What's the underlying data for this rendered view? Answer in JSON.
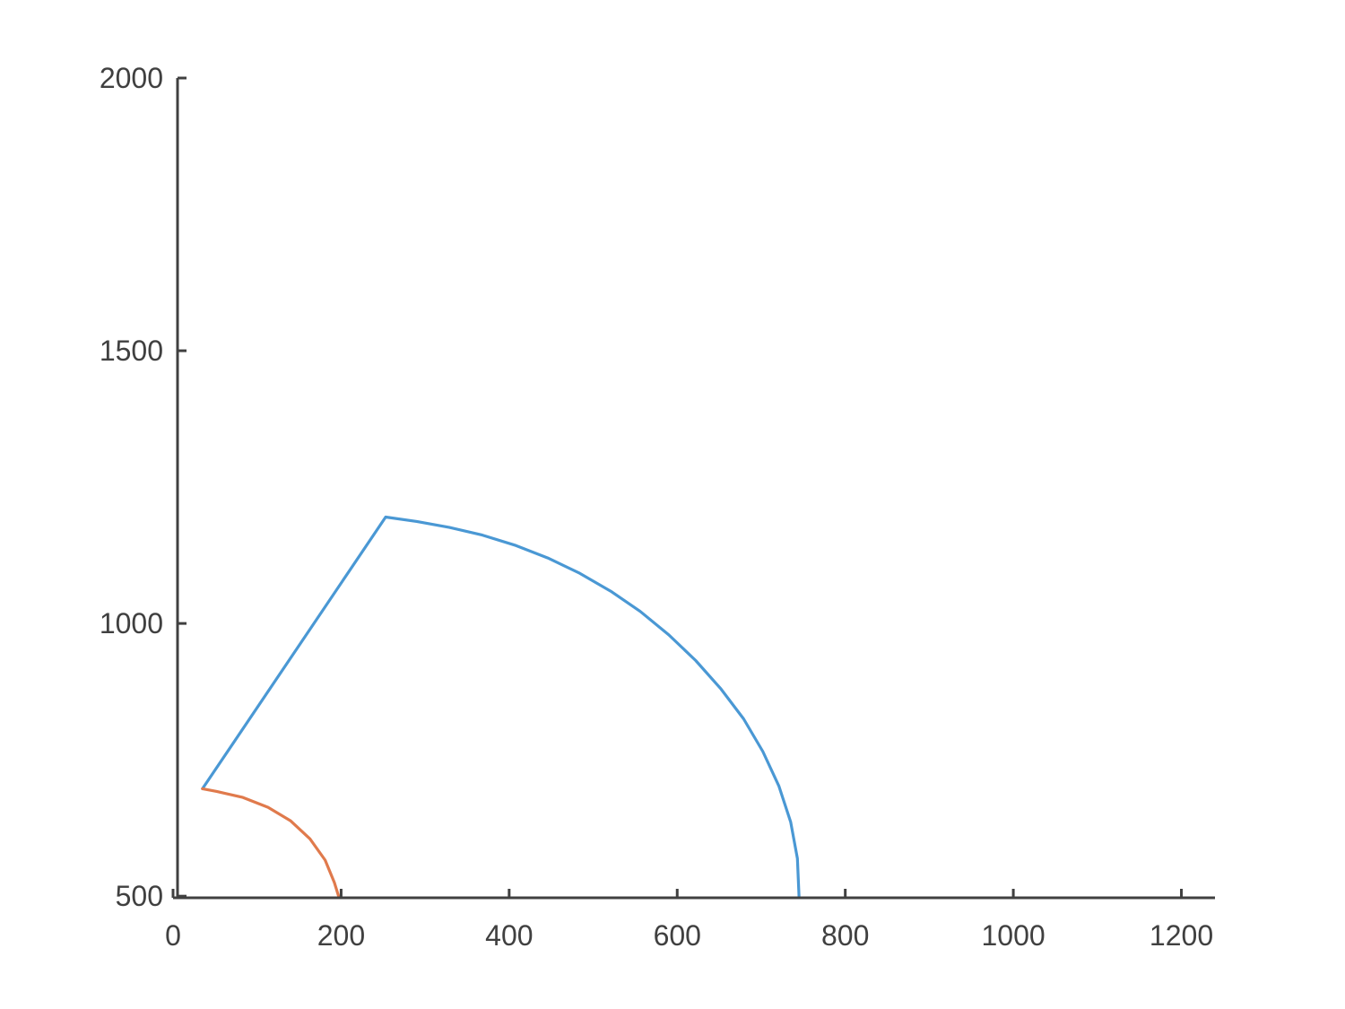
{
  "chart_data": {
    "type": "line",
    "title": "",
    "xlabel": "",
    "ylabel": "",
    "xlim": [
      0,
      1240
    ],
    "ylim": [
      497,
      2000
    ],
    "xticks": [
      0,
      200,
      400,
      600,
      800,
      1000,
      1200
    ],
    "yticks": [
      500,
      1000,
      1500,
      2000
    ],
    "xtick_labels": [
      "0",
      "200",
      "400",
      "600",
      "800",
      "1000",
      "1200"
    ],
    "ytick_labels": [
      "500",
      "1000",
      "1500",
      "2000"
    ],
    "grid": false,
    "box": false,
    "series": [
      {
        "color": "#4a98d4",
        "x": [
          745,
          743,
          735,
          721,
          702,
          679,
          652,
          622,
          590,
          556,
          521,
          484,
          446,
          408,
          368,
          329,
          290,
          253,
          35
        ],
        "y": [
          500,
          569,
          636,
          702,
          765,
          825,
          880,
          932,
          979,
          1022,
          1059,
          1092,
          1120,
          1143,
          1162,
          1176,
          1187,
          1195,
          697
        ]
      },
      {
        "color": "#e07a4c",
        "x": [
          197,
          192,
          181,
          163,
          140,
          113,
          83,
          52,
          35
        ],
        "y": [
          500,
          525,
          566,
          605,
          638,
          663,
          681,
          692,
          697
        ]
      }
    ]
  }
}
